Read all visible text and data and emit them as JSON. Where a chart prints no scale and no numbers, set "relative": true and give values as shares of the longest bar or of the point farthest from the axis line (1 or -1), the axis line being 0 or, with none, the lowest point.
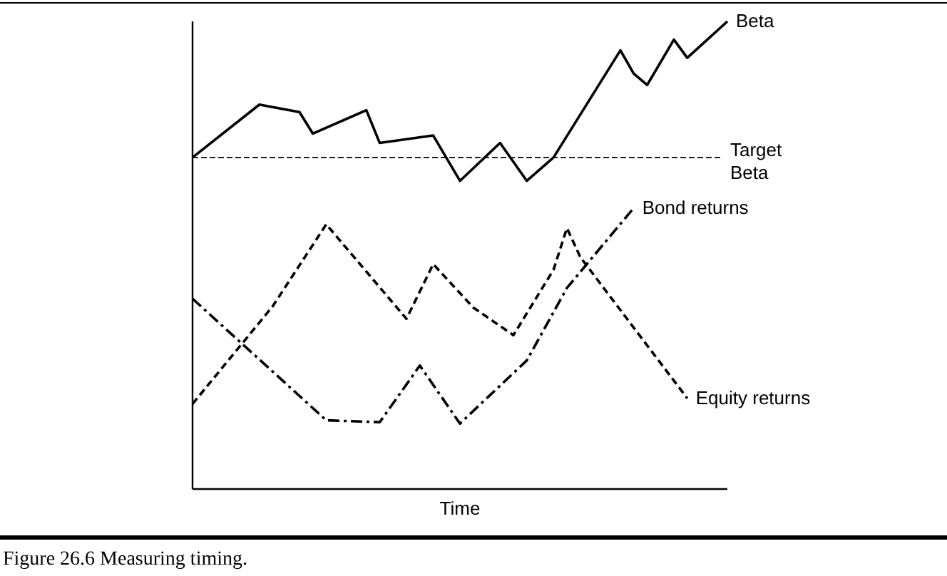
{
  "chart_data": {
    "type": "line",
    "relative": true,
    "xlabel": "Time",
    "marker": "none",
    "categories": [
      null,
      null,
      null,
      null,
      null,
      null,
      null,
      null,
      null,
      null,
      null,
      null,
      null,
      null,
      null,
      null,
      null,
      null,
      null,
      null,
      null,
      null,
      null,
      null,
      null,
      null,
      null,
      null,
      null,
      null,
      null,
      null,
      null,
      null,
      null,
      null,
      null,
      null,
      null,
      null,
      null
    ],
    "series": [
      {
        "name": "Beta",
        "color": "#000000",
        "line_style": "solid",
        "values": [
          0.709,
          null,
          null,
          null,
          null,
          0.822,
          null,
          null,
          0.806,
          0.76,
          null,
          null,
          null,
          0.81,
          0.74,
          null,
          null,
          null,
          0.756,
          null,
          0.659,
          null,
          null,
          0.74,
          null,
          0.659,
          null,
          0.709,
          null,
          null,
          null,
          null,
          0.938,
          0.888,
          0.864,
          null,
          0.961,
          0.922,
          null,
          null,
          1
        ]
      },
      {
        "name": "Bond returns",
        "color": "#000000",
        "line_style": "dashdot",
        "values": [
          0.407,
          null,
          null,
          null,
          null,
          null,
          null,
          null,
          null,
          null,
          0.147,
          null,
          null,
          null,
          0.143,
          null,
          null,
          0.264,
          null,
          null,
          0.14,
          null,
          null,
          null,
          null,
          0.275,
          null,
          null,
          0.43,
          null,
          null,
          null,
          null,
          0.601,
          null,
          null,
          null,
          null,
          null,
          null,
          null
        ]
      },
      {
        "name": "Equity returns",
        "color": "#000000",
        "line_style": "dashed",
        "values": [
          0.182,
          null,
          null,
          null,
          null,
          null,
          0.391,
          null,
          null,
          null,
          0.566,
          null,
          null,
          null,
          null,
          null,
          0.364,
          null,
          0.481,
          null,
          null,
          0.388,
          null,
          null,
          0.329,
          null,
          null,
          0.469,
          0.558,
          0.496,
          null,
          null,
          null,
          null,
          null,
          null,
          null,
          0.194,
          null,
          null,
          null
        ]
      }
    ],
    "ref_lines": [
      {
        "axis": "y",
        "value": 0.709,
        "label": "Target Beta",
        "line_style": "dashed",
        "color": "#000000"
      }
    ],
    "annotations": [
      "Figure 26.6 Measuring timing."
    ]
  }
}
